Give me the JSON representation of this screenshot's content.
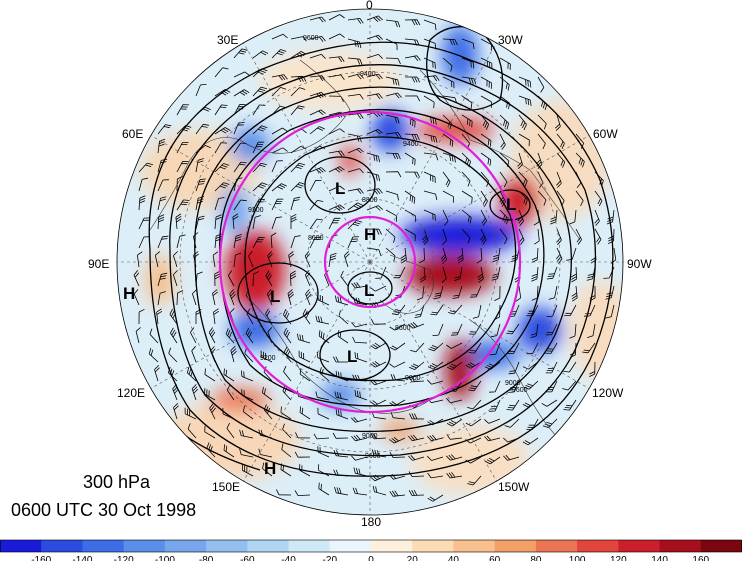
{
  "title": {
    "level": "300 hPa",
    "time": "0600 UTC 30 Oct 1998"
  },
  "longitude_labels": [
    {
      "text": "0",
      "lon": 0
    },
    {
      "text": "30W",
      "lon": -30
    },
    {
      "text": "60W",
      "lon": -60
    },
    {
      "text": "90W",
      "lon": -90
    },
    {
      "text": "120W",
      "lon": -120
    },
    {
      "text": "150W",
      "lon": -150
    },
    {
      "text": "180",
      "lon": 180
    },
    {
      "text": "150E",
      "lon": 150
    },
    {
      "text": "120E",
      "lon": 120
    },
    {
      "text": "90E",
      "lon": 90
    },
    {
      "text": "60E",
      "lon": 60
    },
    {
      "text": "30E",
      "lon": 30
    }
  ],
  "pressure_systems": [
    {
      "label": "H",
      "name": "high-pole"
    },
    {
      "label": "L",
      "name": "low-pole"
    },
    {
      "label": "L",
      "name": "low-barents"
    },
    {
      "label": "L",
      "name": "low-siberia"
    },
    {
      "label": "L",
      "name": "low-eastsiberia"
    },
    {
      "label": "L",
      "name": "low-canada"
    },
    {
      "label": "H",
      "name": "high-asia"
    },
    {
      "label": "H",
      "name": "high-pacific"
    }
  ],
  "contour_labels": [
    "9600",
    "9400",
    "9200",
    "9000",
    "8800",
    "8600",
    "9600",
    "9600",
    "9000",
    "9000",
    "8600",
    "9400",
    "9200"
  ],
  "colorbar": {
    "ticks": [
      "-160",
      "-140",
      "-120",
      "-100",
      "-80",
      "-60",
      "-40",
      "-20",
      "0",
      "20",
      "40",
      "60",
      "80",
      "100",
      "120",
      "140",
      "160"
    ],
    "colors": [
      "#1a1ad9",
      "#2c4ce0",
      "#3d6de6",
      "#5b8ee8",
      "#77a6ec",
      "#93bff0",
      "#b0d6f3",
      "#cfe9f7",
      "#eaf6fb",
      "#fdf1dd",
      "#fbdcb5",
      "#f7c08d",
      "#f29f68",
      "#eb7552",
      "#e2443e",
      "#cc1f2c",
      "#a80f1c",
      "#7a0611"
    ]
  },
  "colors": {
    "ring": "#e020d8"
  }
}
